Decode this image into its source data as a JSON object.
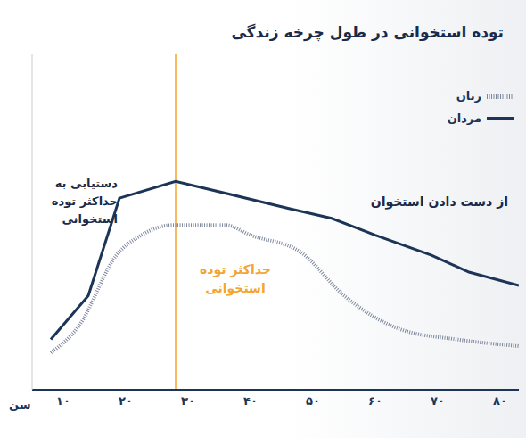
{
  "chart_data": {
    "type": "line",
    "title": "توده استخوانی در طول چرخه زندگی",
    "x_label": "سن",
    "xlim": [
      5,
      83
    ],
    "xticks": [
      {
        "value": 10,
        "label": "۱۰"
      },
      {
        "value": 20,
        "label": "۲۰"
      },
      {
        "value": 30,
        "label": "۳۰"
      },
      {
        "value": 40,
        "label": "۴۰"
      },
      {
        "value": 50,
        "label": "۵۰"
      },
      {
        "value": 60,
        "label": "۶۰"
      },
      {
        "value": 70,
        "label": "۷۰"
      },
      {
        "value": 80,
        "label": "۸۰"
      }
    ],
    "ylim": [
      0,
      100
    ],
    "tick_labels": "x",
    "grid": false,
    "legend": "top-right",
    "series": [
      {
        "name": "زنان",
        "color": "#7d879c",
        "line_style": "dotted",
        "x": [
          8,
          12.5,
          18.5,
          22.5,
          27.5,
          36,
          40,
          48,
          55,
          64,
          73,
          83
        ],
        "values": [
          11,
          19,
          40,
          46,
          49,
          49,
          46,
          41,
          28,
          18,
          15,
          13
        ]
      },
      {
        "name": "مردان",
        "color": "#1c3557",
        "line_style": "solid",
        "x": [
          8,
          14,
          19,
          28,
          46,
          53,
          60,
          69,
          75,
          83
        ],
        "values": [
          15,
          28,
          57,
          62,
          54,
          51,
          46,
          40,
          35,
          31
        ]
      }
    ],
    "annotations": [
      {
        "text": "دستیابی به حداکثر توده استخوانی"
      },
      {
        "text": "از دست دادن استخوان"
      },
      {
        "text": "حداکثر توده استخوانی",
        "x": 28
      }
    ]
  }
}
